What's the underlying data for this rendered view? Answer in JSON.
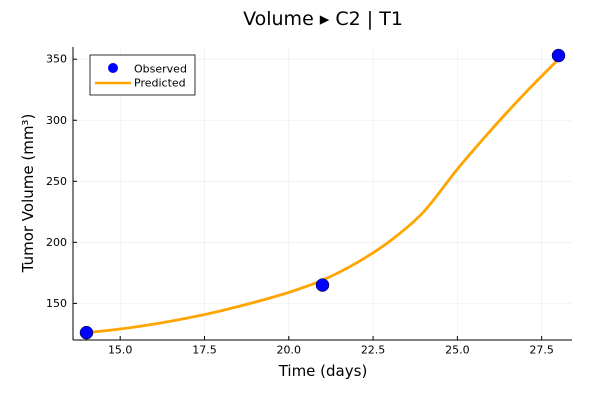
{
  "chart_data": {
    "type": "line",
    "title": "Volume ▸ C2 | T1",
    "xlabel": "Time (days)",
    "ylabel": "Tumor Volume (mm³)",
    "xlim": [
      13.6,
      28.4
    ],
    "ylim": [
      120,
      360
    ],
    "x_ticks": [
      15.0,
      17.5,
      20.0,
      22.5,
      25.0,
      27.5
    ],
    "x_tick_labels": [
      "15.0",
      "17.5",
      "20.0",
      "22.5",
      "25.0",
      "27.5"
    ],
    "y_ticks": [
      150,
      200,
      250,
      300,
      350
    ],
    "y_tick_labels": [
      "150",
      "200",
      "250",
      "300",
      "350"
    ],
    "grid": true,
    "legend_position": "top-left",
    "series": [
      {
        "name": "Observed",
        "kind": "scatter",
        "color": "#0000ff",
        "x": [
          14,
          21,
          28
        ],
        "y": [
          126,
          165,
          353
        ]
      },
      {
        "name": "Predicted",
        "kind": "line",
        "color": "#ffa500",
        "x": [
          14,
          15,
          16,
          17,
          18,
          19,
          20,
          21,
          22,
          23,
          24,
          25,
          26,
          27,
          28
        ],
        "y": [
          126,
          129,
          133,
          138,
          144,
          151,
          159,
          169,
          183,
          201,
          225,
          260,
          292,
          322,
          350
        ]
      }
    ]
  }
}
